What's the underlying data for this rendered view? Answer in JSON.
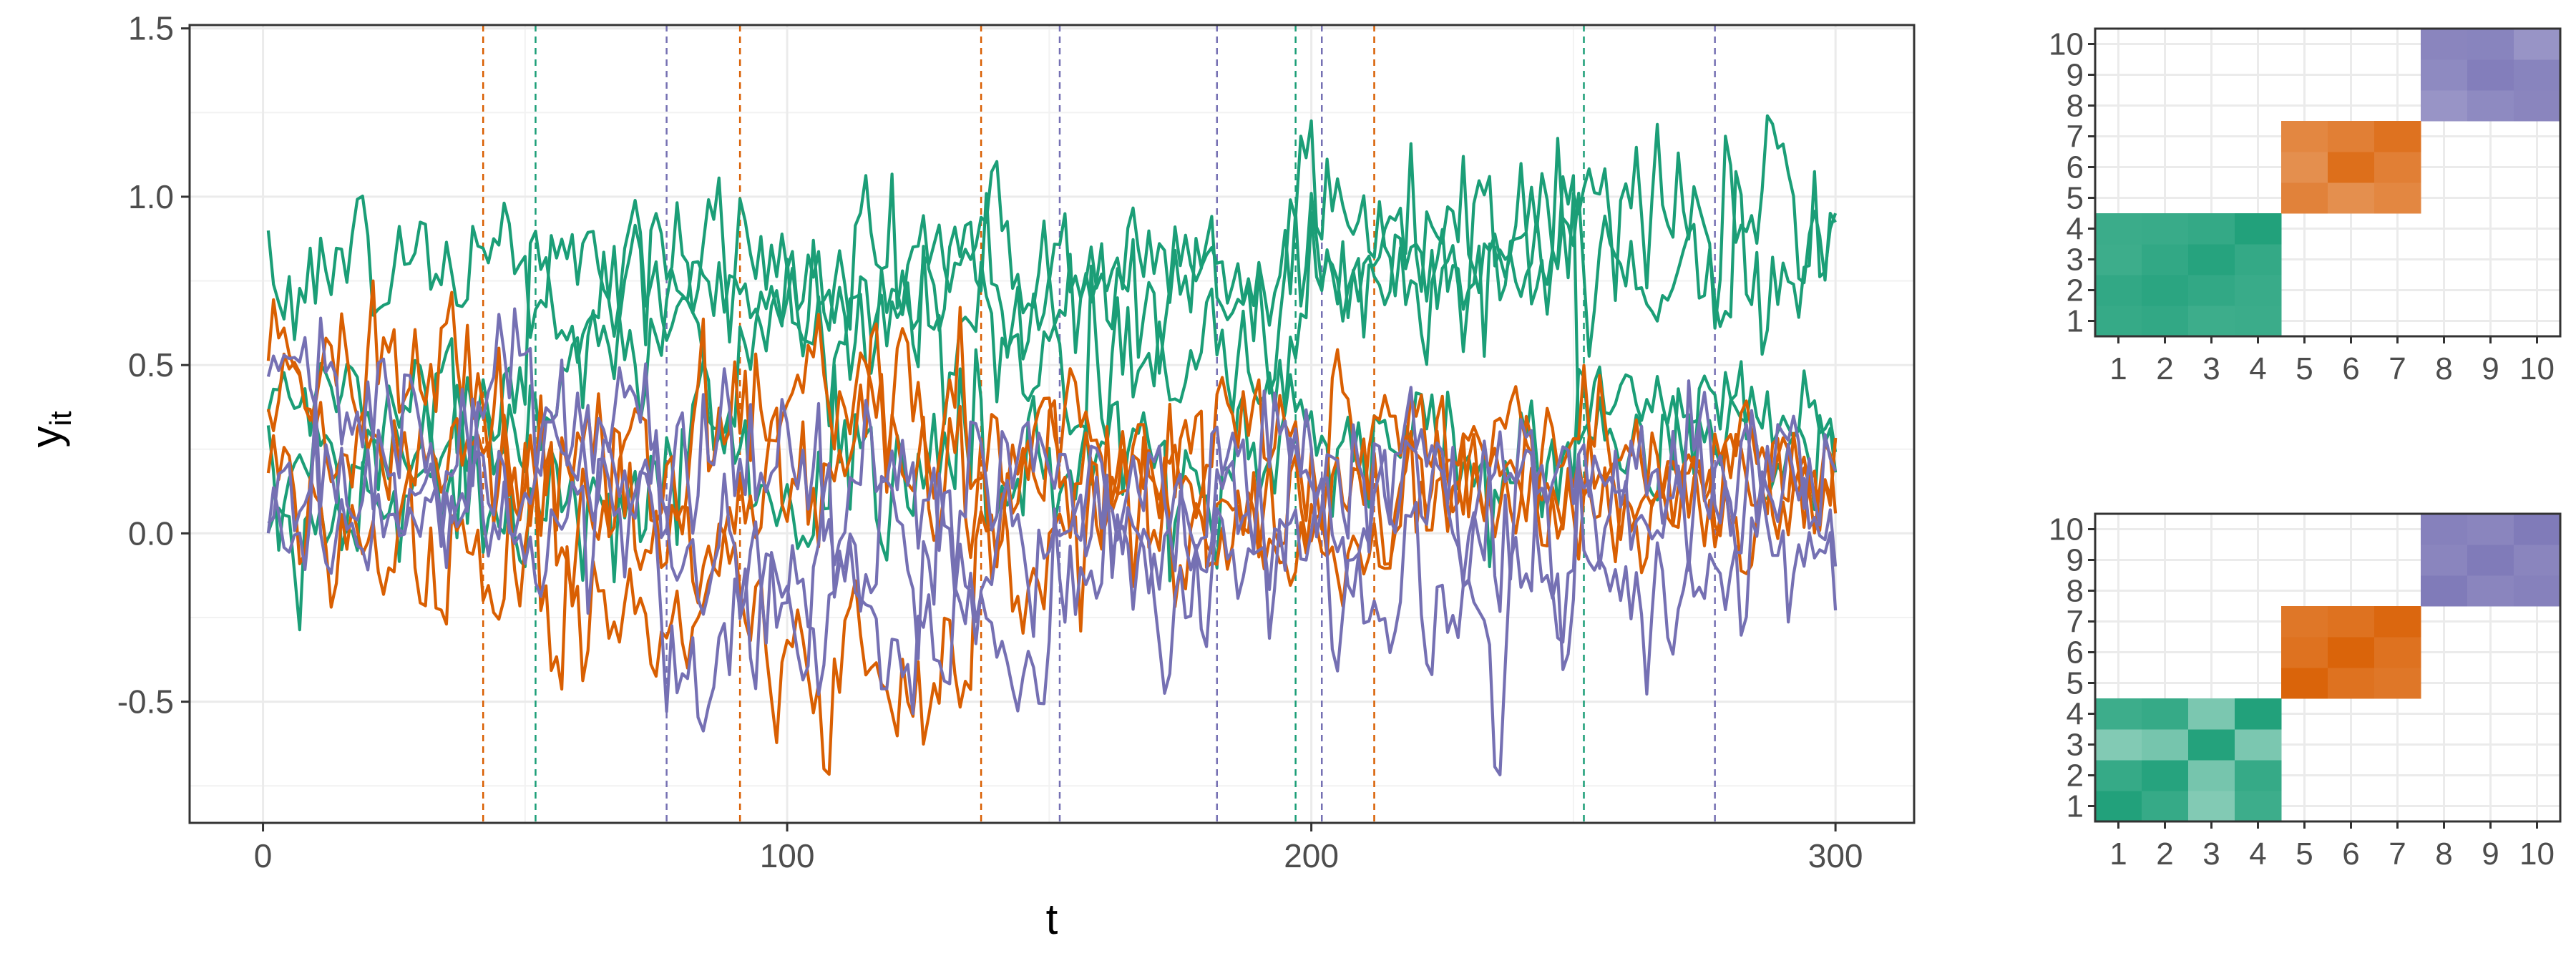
{
  "chart_data": [
    {
      "type": "line",
      "title": "",
      "xlabel": "t",
      "ylabel": "y",
      "ylabel_subscript": "it",
      "xlim": [
        -14,
        315
      ],
      "ylim": [
        -0.86,
        1.51
      ],
      "x_ticks": [
        0,
        100,
        200,
        300
      ],
      "x_tick_labels": [
        "0",
        "100",
        "200",
        "300"
      ],
      "y_ticks": [
        -0.5,
        0.0,
        0.5,
        1.0,
        1.5
      ],
      "y_tick_labels": [
        "-0.5",
        "0.0",
        "0.5",
        "1.0",
        "1.5"
      ],
      "grid": true,
      "legend": "none",
      "n_points": 300,
      "colors": {
        "group1": "#1b9e77",
        "group2": "#d95f02",
        "group3": "#7570b3"
      },
      "series": [
        {
          "group": "group1",
          "segments": [
            {
              "t": [
                1,
                300
              ],
              "mean": 0.8,
              "sd": 0.12
            }
          ]
        },
        {
          "group": "group1",
          "segments": [
            {
              "t": [
                1,
                50
              ],
              "mean": 0.42,
              "sd": 0.1
            },
            {
              "t": [
                51,
                195
              ],
              "mean": 0.72,
              "sd": 0.12
            },
            {
              "t": [
                196,
                300
              ],
              "mean": 0.95,
              "sd": 0.14
            }
          ]
        },
        {
          "group": "group1",
          "segments": [
            {
              "t": [
                1,
                50
              ],
              "mean": 0.25,
              "sd": 0.12
            },
            {
              "t": [
                51,
                195
              ],
              "mean": 0.55,
              "sd": 0.14
            },
            {
              "t": [
                196,
                250
              ],
              "mean": 0.8,
              "sd": 0.13
            },
            {
              "t": [
                251,
                300
              ],
              "mean": 0.33,
              "sd": 0.1
            }
          ]
        },
        {
          "group": "group1",
          "segments": [
            {
              "t": [
                1,
                50
              ],
              "mean": 0.1,
              "sd": 0.12
            },
            {
              "t": [
                51,
                195
              ],
              "mean": 0.18,
              "sd": 0.14
            },
            {
              "t": [
                196,
                250
              ],
              "mean": 0.28,
              "sd": 0.12
            },
            {
              "t": [
                251,
                300
              ],
              "mean": 0.28,
              "sd": 0.1
            }
          ]
        },
        {
          "group": "group2",
          "segments": [
            {
              "t": [
                1,
                41
              ],
              "mean": 0.5,
              "sd": 0.12
            },
            {
              "t": [
                42,
                90
              ],
              "mean": 0.22,
              "sd": 0.14
            },
            {
              "t": [
                91,
                135
              ],
              "mean": 0.35,
              "sd": 0.15
            },
            {
              "t": [
                136,
                210
              ],
              "mean": 0.28,
              "sd": 0.12
            },
            {
              "t": [
                211,
                300
              ],
              "mean": 0.18,
              "sd": 0.1
            }
          ]
        },
        {
          "group": "group2",
          "segments": [
            {
              "t": [
                1,
                41
              ],
              "mean": 0.3,
              "sd": 0.12
            },
            {
              "t": [
                42,
                90
              ],
              "mean": 0.05,
              "sd": 0.14
            },
            {
              "t": [
                91,
                135
              ],
              "mean": 0.2,
              "sd": 0.15
            },
            {
              "t": [
                136,
                210
              ],
              "mean": 0.12,
              "sd": 0.12
            },
            {
              "t": [
                211,
                300
              ],
              "mean": 0.22,
              "sd": 0.1
            }
          ]
        },
        {
          "group": "group2",
          "segments": [
            {
              "t": [
                1,
                41
              ],
              "mean": 0.05,
              "sd": 0.13
            },
            {
              "t": [
                42,
                90
              ],
              "mean": -0.25,
              "sd": 0.14
            },
            {
              "t": [
                91,
                135
              ],
              "mean": -0.45,
              "sd": 0.15
            },
            {
              "t": [
                136,
                210
              ],
              "mean": 0.0,
              "sd": 0.13
            },
            {
              "t": [
                211,
                300
              ],
              "mean": 0.05,
              "sd": 0.12
            }
          ]
        },
        {
          "group": "group3",
          "segments": [
            {
              "t": [
                1,
                75
              ],
              "mean": 0.45,
              "sd": 0.12
            },
            {
              "t": [
                76,
                150
              ],
              "mean": 0.15,
              "sd": 0.14
            },
            {
              "t": [
                151,
                180
              ],
              "mean": 0.1,
              "sd": 0.13
            },
            {
              "t": [
                181,
                200
              ],
              "mean": 0.2,
              "sd": 0.13
            },
            {
              "t": [
                201,
                275
              ],
              "mean": 0.2,
              "sd": 0.12
            },
            {
              "t": [
                276,
                300
              ],
              "mean": 0.15,
              "sd": 0.1
            }
          ]
        },
        {
          "group": "group3",
          "segments": [
            {
              "t": [
                1,
                75
              ],
              "mean": 0.15,
              "sd": 0.12
            },
            {
              "t": [
                76,
                150
              ],
              "mean": -0.1,
              "sd": 0.14
            },
            {
              "t": [
                151,
                180
              ],
              "mean": 0.0,
              "sd": 0.13
            },
            {
              "t": [
                181,
                200
              ],
              "mean": 0.15,
              "sd": 0.13
            },
            {
              "t": [
                201,
                275
              ],
              "mean": 0.05,
              "sd": 0.14
            },
            {
              "t": [
                276,
                300
              ],
              "mean": 0.05,
              "sd": 0.12
            }
          ]
        },
        {
          "group": "group3",
          "segments": [
            {
              "t": [
                1,
                75
              ],
              "mean": 0.05,
              "sd": 0.12
            },
            {
              "t": [
                76,
                150
              ],
              "mean": -0.3,
              "sd": 0.14
            },
            {
              "t": [
                151,
                180
              ],
              "mean": -0.15,
              "sd": 0.13
            },
            {
              "t": [
                181,
                200
              ],
              "mean": -0.05,
              "sd": 0.13
            },
            {
              "t": [
                201,
                275
              ],
              "mean": -0.1,
              "sd": 0.14
            },
            {
              "t": [
                276,
                300
              ],
              "mean": -0.1,
              "sd": 0.12
            }
          ]
        }
      ],
      "changepoints": [
        {
          "x": 42,
          "group": "group2"
        },
        {
          "x": 52,
          "group": "group1"
        },
        {
          "x": 77,
          "group": "group3"
        },
        {
          "x": 91,
          "group": "group2"
        },
        {
          "x": 137,
          "group": "group2"
        },
        {
          "x": 152,
          "group": "group3"
        },
        {
          "x": 182,
          "group": "group3"
        },
        {
          "x": 197,
          "group": "group1"
        },
        {
          "x": 202,
          "group": "group3"
        },
        {
          "x": 212,
          "group": "group2"
        },
        {
          "x": 252,
          "group": "group1"
        },
        {
          "x": 277,
          "group": "group3"
        }
      ]
    },
    {
      "type": "heatmap",
      "title": "",
      "x_tick_labels": [
        "1",
        "2",
        "3",
        "4",
        "5",
        "6",
        "7",
        "8",
        "9",
        "10"
      ],
      "y_tick_labels": [
        "1",
        "2",
        "3",
        "4",
        "5",
        "6",
        "7",
        "8",
        "9",
        "10"
      ],
      "blocks": [
        {
          "indices": [
            1,
            2,
            3,
            4
          ],
          "color": "#1b9e77"
        },
        {
          "indices": [
            5,
            6,
            7
          ],
          "color": "#d95f02"
        },
        {
          "indices": [
            8,
            9,
            10
          ],
          "color": "#7570b3"
        }
      ],
      "cell_values": [
        [
          0.88,
          0.9,
          0.85,
          0.86
        ],
        [
          0.9,
          0.93,
          0.9,
          0.87
        ],
        [
          0.85,
          0.9,
          0.95,
          0.89
        ],
        [
          0.86,
          0.87,
          0.89,
          0.97
        ],
        [
          0.78,
          0.7,
          0.75
        ],
        [
          0.7,
          0.9,
          0.8
        ],
        [
          0.75,
          0.8,
          0.88
        ],
        [
          0.75,
          0.82,
          0.85
        ],
        [
          0.82,
          0.9,
          0.86
        ],
        [
          0.85,
          0.86,
          0.75
        ]
      ]
    },
    {
      "type": "heatmap",
      "title": "",
      "x_tick_labels": [
        "1",
        "2",
        "3",
        "4",
        "5",
        "6",
        "7",
        "8",
        "9",
        "10"
      ],
      "y_tick_labels": [
        "1",
        "2",
        "3",
        "4",
        "5",
        "6",
        "7",
        "8",
        "9",
        "10"
      ],
      "blocks": [
        {
          "indices": [
            1,
            2,
            3,
            4
          ],
          "color": "#1b9e77"
        },
        {
          "indices": [
            5,
            6,
            7
          ],
          "color": "#d95f02"
        },
        {
          "indices": [
            8,
            9,
            10
          ],
          "color": "#7570b3"
        }
      ],
      "cell_values": [
        [
          0.97,
          0.88,
          0.55,
          0.85
        ],
        [
          0.88,
          0.95,
          0.6,
          0.88
        ],
        [
          0.55,
          0.6,
          0.96,
          0.58
        ],
        [
          0.85,
          0.88,
          0.58,
          0.97
        ],
        [
          0.97,
          0.88,
          0.85
        ],
        [
          0.88,
          0.97,
          0.88
        ],
        [
          0.85,
          0.88,
          0.95
        ],
        [
          0.92,
          0.85,
          0.88
        ],
        [
          0.85,
          0.92,
          0.85
        ],
        [
          0.88,
          0.85,
          0.92
        ]
      ]
    }
  ]
}
